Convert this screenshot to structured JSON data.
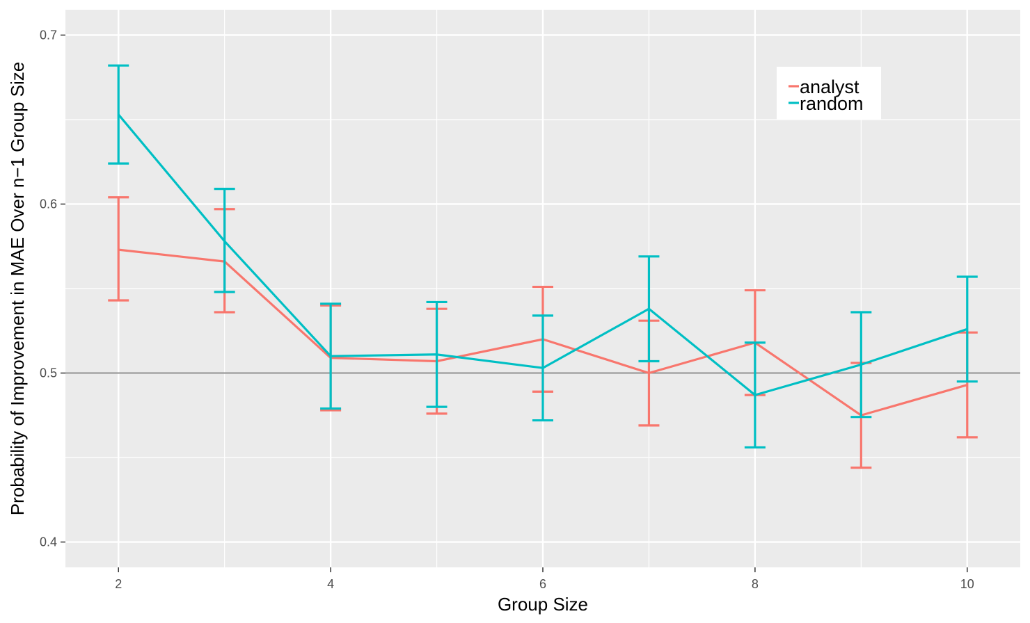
{
  "chart_data": {
    "type": "line",
    "title": "",
    "xlabel": "Group Size",
    "ylabel": "Probability of Improvement in MAE Over n−1 Group Size",
    "xlim": [
      1.5,
      10.5
    ],
    "ylim": [
      0.385,
      0.715
    ],
    "x_ticks": [
      2,
      4,
      6,
      8,
      10
    ],
    "x_tick_labels": [
      "2",
      "4",
      "6",
      "8",
      "10"
    ],
    "y_ticks": [
      0.4,
      0.5,
      0.6,
      0.7
    ],
    "y_tick_labels": [
      "0.4",
      "0.5",
      "0.6",
      "0.7"
    ],
    "reference_line": 0.5,
    "grid": true,
    "legend_position": "top-right",
    "x": [
      2,
      3,
      4,
      5,
      6,
      7,
      8,
      9,
      10
    ],
    "series": [
      {
        "name": "analyst",
        "color": "#F8766D",
        "values": [
          0.573,
          0.566,
          0.509,
          0.507,
          0.52,
          0.5,
          0.518,
          0.475,
          0.493
        ],
        "lower": [
          0.543,
          0.536,
          0.478,
          0.476,
          0.489,
          0.469,
          0.487,
          0.444,
          0.462
        ],
        "upper": [
          0.604,
          0.597,
          0.54,
          0.538,
          0.551,
          0.531,
          0.549,
          0.506,
          0.524
        ]
      },
      {
        "name": "random",
        "color": "#00BFC4",
        "values": [
          0.653,
          0.578,
          0.51,
          0.511,
          0.503,
          0.538,
          0.487,
          0.505,
          0.526
        ],
        "lower": [
          0.624,
          0.548,
          0.479,
          0.48,
          0.472,
          0.507,
          0.456,
          0.474,
          0.495
        ],
        "upper": [
          0.682,
          0.609,
          0.541,
          0.542,
          0.534,
          0.569,
          0.518,
          0.536,
          0.557
        ]
      }
    ]
  }
}
